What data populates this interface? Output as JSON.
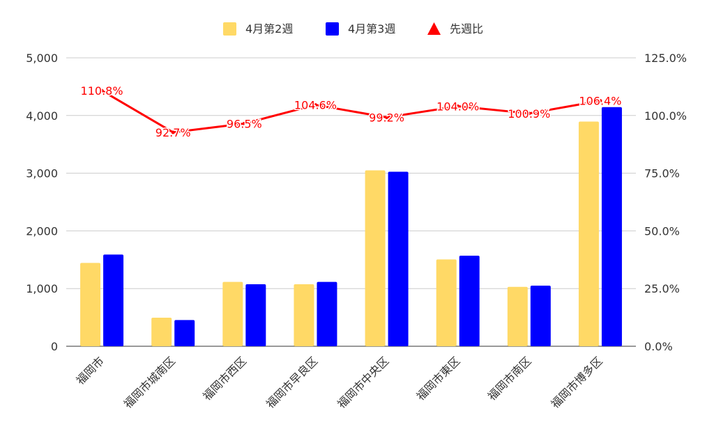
{
  "chart_data": {
    "type": "bar",
    "categories": [
      "福岡市",
      "福岡市城南区",
      "福岡市西区",
      "福岡市早良区",
      "福岡市中央区",
      "福岡市東区",
      "福岡市南区",
      "福岡市博多区"
    ],
    "series": [
      {
        "name": "4月第2週",
        "type": "bar",
        "axis": "left",
        "color": "#ffd966",
        "values": [
          1445,
          495,
          1115,
          1075,
          3050,
          1505,
          1030,
          3895
        ]
      },
      {
        "name": "4月第3週",
        "type": "bar",
        "axis": "left",
        "color": "#0000ff",
        "values": [
          1590,
          455,
          1075,
          1115,
          3025,
          1570,
          1050,
          4145
        ]
      },
      {
        "name": "先週比",
        "type": "line",
        "axis": "right",
        "color": "#ff0000",
        "values": [
          110.8,
          92.7,
          96.5,
          104.6,
          99.2,
          104.0,
          100.9,
          106.4
        ],
        "labels": [
          "110.8%",
          "92.7%",
          "96.5%",
          "104.6%",
          "99.2%",
          "104.0%",
          "100.9%",
          "106.4%"
        ]
      }
    ],
    "y_left": {
      "min": 0,
      "max": 5000,
      "ticks": [
        "0",
        "1,000",
        "2,000",
        "3,000",
        "4,000",
        "5,000"
      ]
    },
    "y_right": {
      "min": 0,
      "max": 125,
      "ticks": [
        "0.0%",
        "25.0%",
        "50.0%",
        "75.0%",
        "100.0%",
        "125.0%"
      ]
    },
    "grid": true,
    "legend_position": "top-center",
    "title": "",
    "xlabel": "",
    "ylabel": ""
  }
}
